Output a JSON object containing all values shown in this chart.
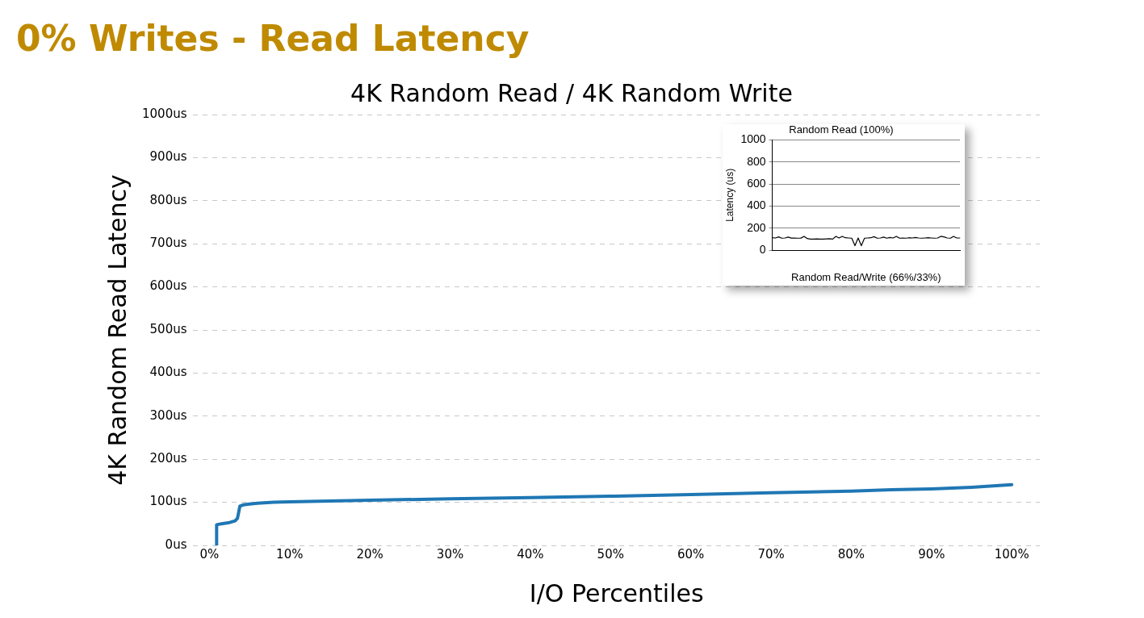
{
  "chart_data": [
    {
      "type": "line",
      "title": "0% Writes - Read Latency",
      "subtitle": "4K Random Read / 4K Random Write",
      "xlabel": "I/O Percentiles",
      "ylabel": "4K Random Read Latency",
      "x": [
        0.9,
        0.9,
        1.5,
        2.5,
        3.2,
        3.5,
        3.8,
        4.2,
        5,
        6,
        8,
        10,
        15,
        20,
        30,
        40,
        50,
        60,
        70,
        80,
        85,
        90,
        95,
        100
      ],
      "series": [
        {
          "color": "#1f77b4",
          "values": [
            0,
            48,
            50,
            53,
            57,
            63,
            91,
            94,
            96,
            98,
            100,
            101,
            103,
            105,
            108,
            111,
            114,
            118,
            122,
            126,
            129,
            131,
            135,
            141
          ]
        }
      ],
      "xlim": [
        -2,
        103.5
      ],
      "ylim": [
        0,
        1000
      ],
      "xticks": [
        {
          "value": 0,
          "label": "0%"
        },
        {
          "value": 10,
          "label": "10%"
        },
        {
          "value": 20,
          "label": "20%"
        },
        {
          "value": 30,
          "label": "30%"
        },
        {
          "value": 40,
          "label": "40%"
        },
        {
          "value": 50,
          "label": "50%"
        },
        {
          "value": 60,
          "label": "60%"
        },
        {
          "value": 70,
          "label": "70%"
        },
        {
          "value": 80,
          "label": "80%"
        },
        {
          "value": 90,
          "label": "90%"
        },
        {
          "value": 100,
          "label": "100%"
        }
      ],
      "yticks": [
        {
          "value": 0,
          "label": "0us"
        },
        {
          "value": 100,
          "label": "100us"
        },
        {
          "value": 200,
          "label": "200us"
        },
        {
          "value": 300,
          "label": "300us"
        },
        {
          "value": 400,
          "label": "400us"
        },
        {
          "value": 500,
          "label": "500us"
        },
        {
          "value": 600,
          "label": "600us"
        },
        {
          "value": 700,
          "label": "700us"
        },
        {
          "value": 800,
          "label": "800us"
        },
        {
          "value": 900,
          "label": "900us"
        },
        {
          "value": 1000,
          "label": "1000us"
        }
      ],
      "grid": "y",
      "line_style": "solid",
      "marker": "none"
    },
    {
      "type": "line",
      "title": "Random Read (100%)",
      "xlabel": "Random Read/Write (66%/33%)",
      "ylabel": "Latency (us)",
      "categories": [
        null,
        null,
        null,
        null,
        null,
        null,
        null,
        null,
        null,
        null,
        null,
        null,
        null,
        null,
        null,
        null,
        null,
        null,
        null,
        null,
        null,
        null,
        null,
        null,
        null,
        null,
        null,
        null,
        null,
        null,
        null,
        null,
        null,
        null,
        null,
        null,
        null,
        null,
        null,
        null,
        null,
        null,
        null,
        null,
        null,
        null,
        null,
        null,
        null,
        null,
        null,
        null,
        null,
        null,
        null,
        null,
        null,
        null,
        null,
        null
      ],
      "series": [
        {
          "color": "#000000",
          "values": [
            112,
            110,
            120,
            108,
            110,
            118,
            109,
            110,
            108,
            109,
            125,
            105,
            100,
            100,
            101,
            100,
            100,
            102,
            103,
            100,
            125,
            110,
            125,
            112,
            110,
            108,
            40,
            110,
            40,
            108,
            110,
            112,
            122,
            108,
            110,
            118,
            108,
            115,
            110,
            125,
            108,
            110,
            108,
            112,
            110,
            115,
            110,
            108,
            110,
            112,
            110,
            108,
            110,
            125,
            120,
            110,
            108,
            125,
            110,
            110
          ]
        }
      ],
      "ylim": [
        0,
        1000
      ],
      "yticks": [
        0,
        200,
        400,
        600,
        800,
        1000
      ],
      "grid": "y",
      "line_style": "solid",
      "marker": "none"
    }
  ]
}
